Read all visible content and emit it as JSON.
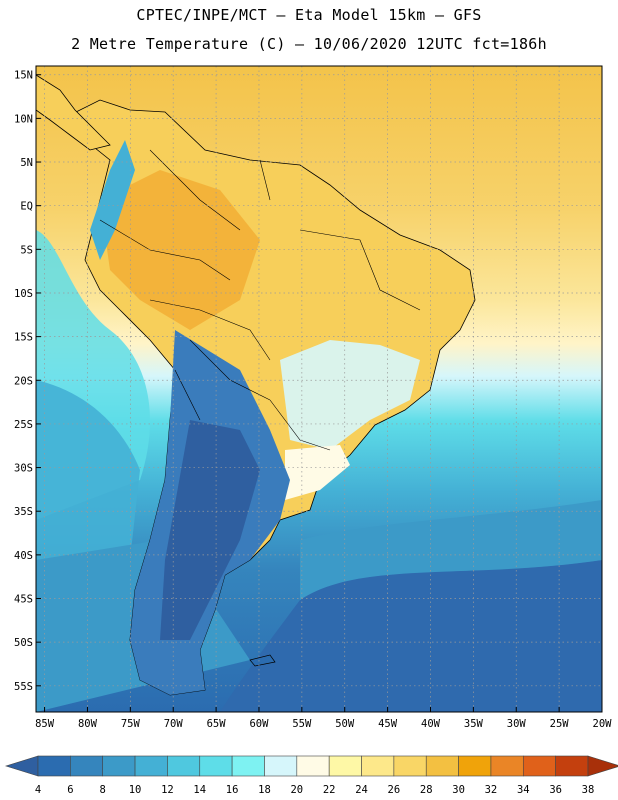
{
  "header": {
    "line1": "CPTEC/INPE/MCT –  Eta Model 15km – GFS",
    "line2": "2 Metre Temperature (C) – 10/06/2020 12UTC fct=186h"
  },
  "map": {
    "lat_labels": [
      "15N",
      "10N",
      "5N",
      "EQ",
      "5S",
      "10S",
      "15S",
      "20S",
      "25S",
      "30S",
      "35S",
      "40S",
      "45S",
      "50S",
      "55S"
    ],
    "lon_labels": [
      "85W",
      "80W",
      "75W",
      "70W",
      "65W",
      "60W",
      "55W",
      "50W",
      "45W",
      "40W",
      "35W",
      "30W",
      "25W",
      "20W"
    ],
    "lat_range": [
      16,
      -58
    ],
    "lon_range": [
      -86,
      -20
    ],
    "gridlines": "dotted"
  },
  "colorbar": {
    "labels": [
      "4",
      "6",
      "8",
      "10",
      "12",
      "14",
      "16",
      "18",
      "20",
      "22",
      "24",
      "26",
      "28",
      "30",
      "32",
      "34",
      "36",
      "38"
    ],
    "colors": [
      "#2f5fa0",
      "#2b6cb0",
      "#3585bd",
      "#3c9ac8",
      "#44b0d5",
      "#4fc8df",
      "#5edde8",
      "#7ef2f2",
      "#d6f6fb",
      "#fffbe6",
      "#fef8a6",
      "#fde88a",
      "#f9d666",
      "#f3c041",
      "#f0a30a",
      "#ea8526",
      "#e0611a",
      "#c4400e",
      "#a8300a"
    ]
  }
}
